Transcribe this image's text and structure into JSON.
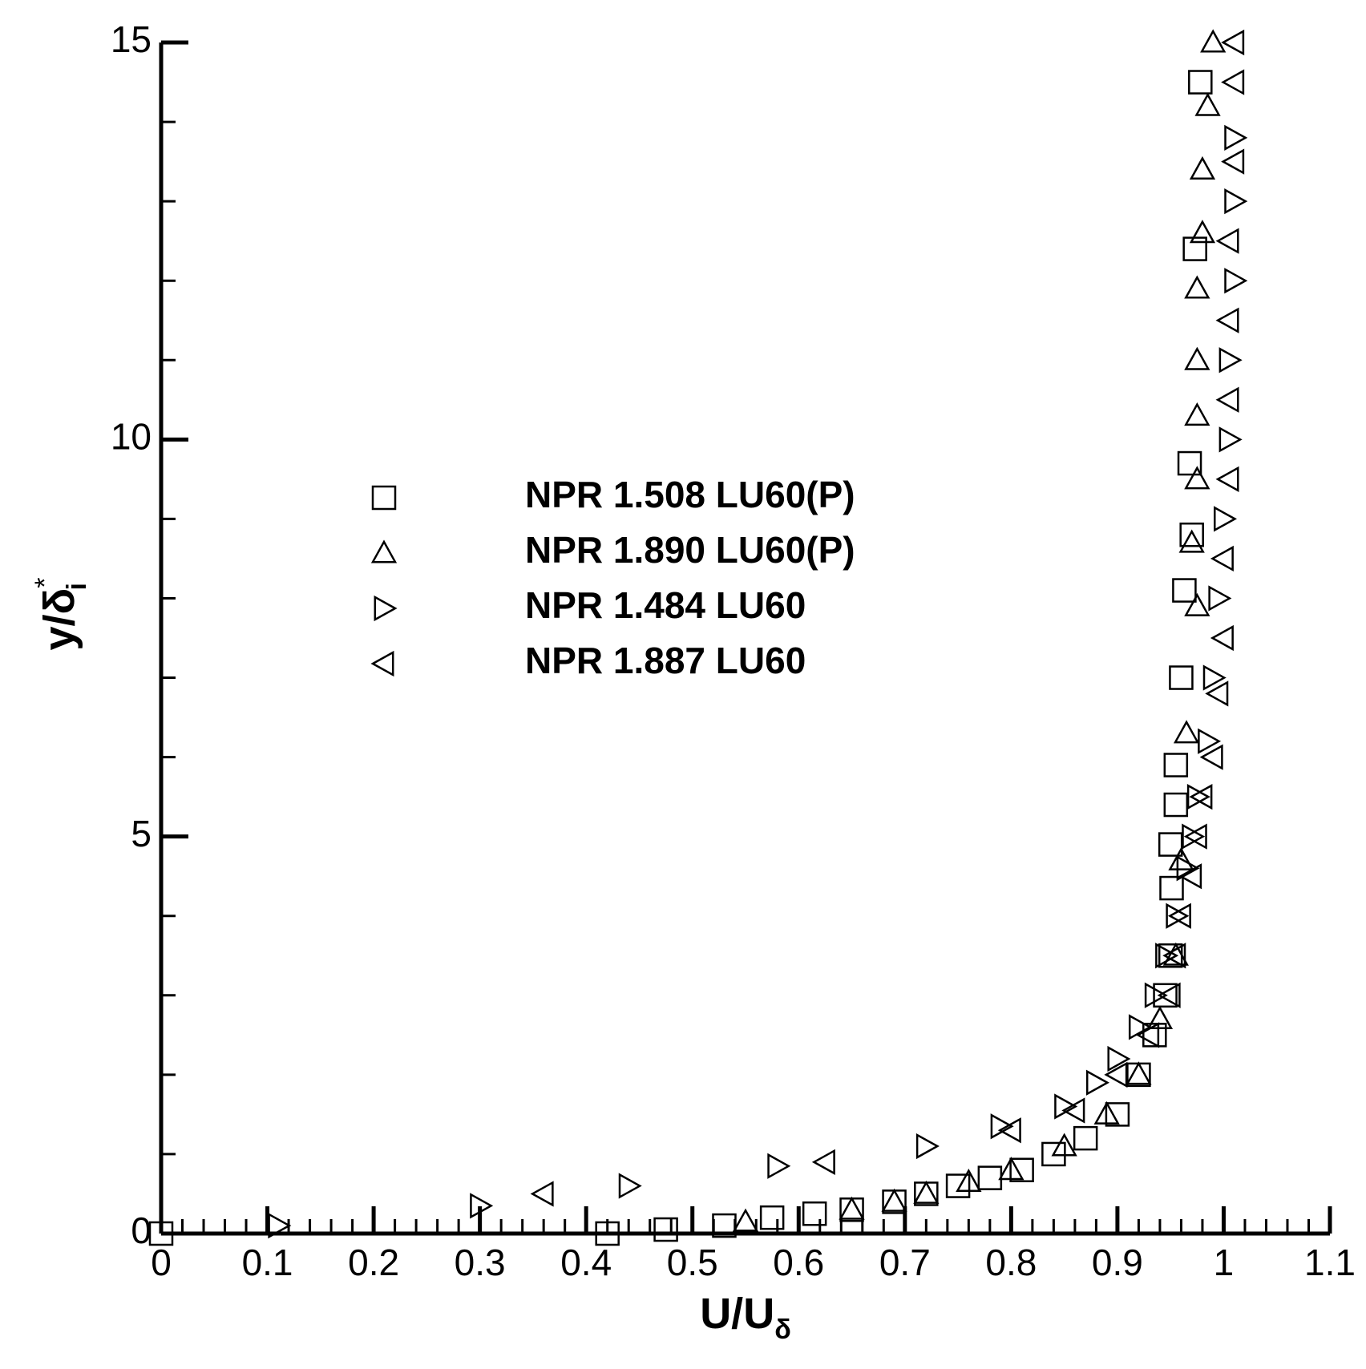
{
  "chart_data": {
    "type": "scatter",
    "xlabel": "U/U",
    "xlabel_sub": "δ",
    "ylabel": "y/δ",
    "ylabel_sup": "*",
    "ylabel_sub": "i",
    "xlim": [
      0,
      1.1
    ],
    "ylim": [
      0,
      15
    ],
    "xticks": [
      0,
      0.1,
      0.2,
      0.3,
      0.4,
      0.5,
      0.6,
      0.7,
      0.8,
      0.9,
      1,
      1.1
    ],
    "yticks": [
      0,
      5,
      10,
      15
    ],
    "xminorticks": [
      0.02,
      0.04,
      0.06,
      0.08,
      0.12,
      0.14,
      0.16,
      0.18,
      0.22,
      0.24,
      0.26,
      0.28,
      0.32,
      0.34,
      0.36,
      0.38,
      0.42,
      0.44,
      0.46,
      0.48,
      0.52,
      0.54,
      0.56,
      0.58,
      0.62,
      0.64,
      0.66,
      0.68,
      0.72,
      0.74,
      0.76,
      0.78,
      0.82,
      0.84,
      0.86,
      0.88,
      0.92,
      0.94,
      0.96,
      0.98,
      1.02,
      1.04,
      1.06,
      1.08
    ],
    "yminorticks": [
      1,
      2,
      3,
      4,
      6,
      7,
      8,
      9,
      11,
      12,
      13,
      14
    ],
    "legend": "upper left",
    "grid": false,
    "series": [
      {
        "name": "NPR 1.508 LU60(P)",
        "marker": "square",
        "color": "#000000",
        "x": [
          0,
          0.42,
          0.475,
          0.53,
          0.575,
          0.615,
          0.65,
          0.69,
          0.72,
          0.75,
          0.78,
          0.81,
          0.84,
          0.87,
          0.9,
          0.92,
          0.935,
          0.945,
          0.95,
          0.951,
          0.95,
          0.955,
          0.955,
          0.96,
          0.963,
          0.97,
          0.968,
          0.973,
          0.978
        ],
        "y": [
          0,
          0,
          0.05,
          0.1,
          0.2,
          0.25,
          0.3,
          0.4,
          0.5,
          0.6,
          0.7,
          0.8,
          1.0,
          1.2,
          1.5,
          2.0,
          2.5,
          3.0,
          3.5,
          4.35,
          4.9,
          5.4,
          5.9,
          7.0,
          8.1,
          8.8,
          9.7,
          12.4,
          14.5
        ]
      },
      {
        "name": "NPR 1.890 LU60(P)",
        "marker": "triangle-up",
        "color": "#000000",
        "x": [
          0.55,
          0.65,
          0.69,
          0.72,
          0.76,
          0.8,
          0.85,
          0.89,
          0.92,
          0.94,
          0.955,
          0.96,
          0.965,
          0.975,
          0.97,
          0.975,
          0.975,
          0.975,
          0.975,
          0.98,
          0.98,
          0.985,
          0.99
        ],
        "y": [
          0.15,
          0.3,
          0.4,
          0.5,
          0.65,
          0.8,
          1.1,
          1.5,
          2.0,
          2.7,
          3.5,
          4.7,
          6.3,
          7.9,
          8.7,
          9.5,
          10.3,
          11.0,
          11.9,
          12.6,
          13.4,
          14.2,
          15.0
        ]
      },
      {
        "name": "NPR 1.484 LU60",
        "marker": "triangle-right",
        "color": "#000000",
        "x": [
          0.11,
          0.3,
          0.44,
          0.58,
          0.72,
          0.79,
          0.85,
          0.88,
          0.9,
          0.92,
          0.935,
          0.945,
          0.955,
          0.965,
          0.97,
          0.975,
          0.985,
          0.99,
          0.995,
          1.0,
          1.005,
          1.005,
          1.01,
          1.01,
          1.01
        ],
        "y": [
          0.1,
          0.35,
          0.6,
          0.85,
          1.1,
          1.35,
          1.6,
          1.9,
          2.2,
          2.6,
          3.0,
          3.5,
          4.0,
          4.6,
          5.0,
          5.5,
          6.2,
          7.0,
          8.0,
          9.0,
          10.0,
          11.0,
          12.0,
          13.0,
          13.8
        ]
      },
      {
        "name": "NPR 1.887 LU60",
        "marker": "triangle-left",
        "color": "#000000",
        "x": [
          0.36,
          0.625,
          0.8,
          0.86,
          0.9,
          0.93,
          0.95,
          0.955,
          0.96,
          0.97,
          0.975,
          0.98,
          0.99,
          0.995,
          1.0,
          1.0,
          1.005,
          1.005,
          1.005,
          1.005,
          1.01,
          1.01,
          1.01
        ],
        "y": [
          0.5,
          0.9,
          1.3,
          1.55,
          2.0,
          2.5,
          3.0,
          3.5,
          4.0,
          4.5,
          5.0,
          5.5,
          6.0,
          6.8,
          7.5,
          8.5,
          9.5,
          10.5,
          11.5,
          12.5,
          13.5,
          14.5,
          15.0
        ]
      }
    ]
  }
}
